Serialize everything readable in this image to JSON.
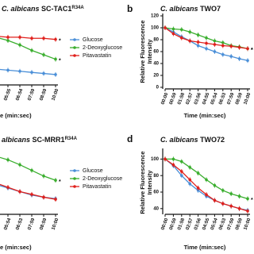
{
  "chart_data": [
    {
      "type": "line",
      "title_species": "C. albicans",
      "title_strain": "SC-TAC1",
      "title_superscript": "R34A",
      "xlabel": "e (min:sec)",
      "categories": [
        "04:55",
        "05:55",
        "06:54",
        "07:59",
        "08:59",
        "10:00"
      ],
      "ylim": [
        40,
        100
      ],
      "legend": true,
      "annotations": [
        "*",
        "*"
      ],
      "series": [
        {
          "name": "Glucose",
          "color": "#4a8fd8",
          "values": [
            53,
            52,
            51,
            50,
            49,
            48
          ]
        },
        {
          "name": "2-Deoxyglucose",
          "color": "#3aae2e",
          "values": [
            82,
            79,
            75,
            70,
            66,
            62
          ]
        },
        {
          "name": "Pitavastatin",
          "color": "#e0201c",
          "values": [
            83,
            82,
            82,
            81,
            81,
            80
          ]
        }
      ]
    },
    {
      "type": "line",
      "panel": "b",
      "title_species": "C. albicans",
      "title_strain": "TWO7",
      "xlabel": "Time (min:sec)",
      "ylabel": [
        "Relative Fluorescence",
        "Intensity"
      ],
      "categories": [
        "00:00",
        "00:59",
        "01:58",
        "02:57",
        "03:56",
        "04:55",
        "05:54",
        "06:53",
        "07:59",
        "08:59",
        "10:00"
      ],
      "ylim": [
        0,
        120
      ],
      "yticks": [
        0,
        20,
        40,
        60,
        80,
        100,
        120
      ],
      "legend": false,
      "annotations": [
        "*",
        "*"
      ],
      "series": [
        {
          "name": "Glucose",
          "color": "#4a8fd8",
          "values": [
            100,
            93,
            85,
            78,
            70,
            65,
            60,
            55,
            52,
            48,
            45
          ]
        },
        {
          "name": "2-Deoxyglucose",
          "color": "#3aae2e",
          "values": [
            100,
            98,
            97,
            93,
            88,
            83,
            78,
            75,
            70,
            68,
            65
          ]
        },
        {
          "name": "Pitavastatin",
          "color": "#e0201c",
          "values": [
            100,
            90,
            83,
            78,
            76,
            74,
            72,
            70,
            69,
            67,
            65
          ]
        }
      ]
    },
    {
      "type": "line",
      "title_species": "albicans",
      "title_strain": "SC-MRR1",
      "title_superscript": "R34A",
      "xlabel": "e (min:sec)",
      "categories": [
        "04:55",
        "05:54",
        "06:53",
        "07:59",
        "08:59",
        "10:00"
      ],
      "ylim": [
        20,
        110
      ],
      "legend": true,
      "annotations": [
        "*"
      ],
      "series": [
        {
          "name": "Glucose",
          "color": "#4a8fd8",
          "values": [
            60,
            55,
            50,
            45,
            42,
            40
          ]
        },
        {
          "name": "2-Deoxyglucose",
          "color": "#3aae2e",
          "values": [
            100,
            95,
            88,
            80,
            72,
            66
          ]
        },
        {
          "name": "Pitavastatin",
          "color": "#e0201c",
          "values": [
            62,
            56,
            50,
            46,
            42,
            39
          ]
        }
      ]
    },
    {
      "type": "line",
      "panel": "d",
      "title_species": "C. albicans",
      "title_strain": "TWO72",
      "xlabel": "Time (min:sec)",
      "ylabel": [
        "Relative Fluorescence",
        "Intensity"
      ],
      "categories": [
        "00:00",
        "00:59",
        "01:58",
        "02:57",
        "03:56",
        "04:55",
        "05:54",
        "06:53",
        "07:59",
        "08:59",
        "10:00"
      ],
      "ylim": [
        35,
        110
      ],
      "yticks": [
        40,
        60,
        80,
        100
      ],
      "legend": false,
      "annotations": [
        "*"
      ],
      "series": [
        {
          "name": "Glucose",
          "color": "#4a8fd8",
          "values": [
            100,
            92,
            80,
            70,
            62,
            55,
            50,
            46,
            43,
            40,
            38
          ]
        },
        {
          "name": "2-Deoxyglucose",
          "color": "#3aae2e",
          "values": [
            100,
            100,
            97,
            90,
            83,
            75,
            68,
            62,
            58,
            55,
            52
          ]
        },
        {
          "name": "Pitavastatin",
          "color": "#e0201c",
          "values": [
            100,
            93,
            85,
            75,
            65,
            57,
            50,
            46,
            43,
            40,
            37
          ]
        }
      ]
    }
  ]
}
